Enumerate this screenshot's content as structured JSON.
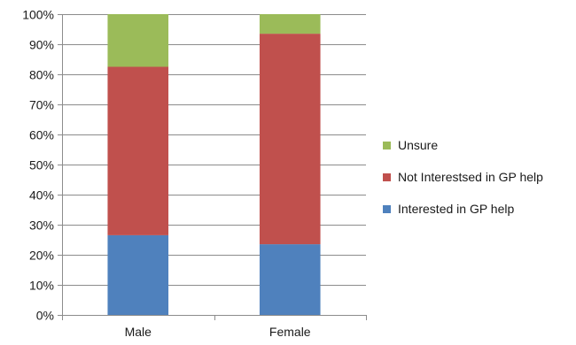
{
  "chart_data": {
    "type": "bar",
    "stacked": true,
    "percent": true,
    "title": "",
    "xlabel": "",
    "ylabel": "",
    "categories": [
      "Male",
      "Female"
    ],
    "series": [
      {
        "name": "Interested in GP help",
        "color": "#4f81bd",
        "values": [
          26.5,
          23.5
        ]
      },
      {
        "name": "Not Interestsed in GP help",
        "color": "#c0504d",
        "values": [
          56,
          70
        ]
      },
      {
        "name": "Unsure",
        "color": "#9bbb59",
        "values": [
          17.5,
          6.5
        ]
      }
    ],
    "ylim": [
      0,
      100
    ],
    "yticks": [
      "0%",
      "10%",
      "20%",
      "30%",
      "40%",
      "50%",
      "60%",
      "70%",
      "80%",
      "90%",
      "100%"
    ],
    "grid": true,
    "legend_position": "right",
    "legend_order": [
      "Unsure",
      "Not Interestsed in GP help",
      "Interested in GP help"
    ]
  }
}
